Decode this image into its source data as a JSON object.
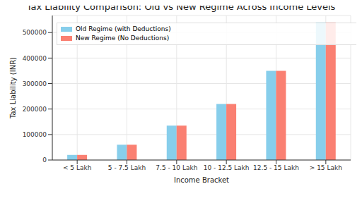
{
  "chart_data": {
    "type": "bar",
    "title": "Tax Liability Comparison: Old vs New Regime Across Income Levels",
    "x_label": "Income Bracket",
    "y_label": "Tax Liability (INR)",
    "categories": [
      "< 5 Lakh",
      "5 - 7.5 Lakh",
      "7.5 - 10 Lakh",
      "10 - 12.5 Lakh",
      "12.5 - 15 Lakh",
      "> 15 Lakh"
    ],
    "series": [
      {
        "name": "Old Regime (with Deductions)",
        "color": "#87ceeb",
        "values": [
          20000,
          60000,
          135000,
          220000,
          350000,
          540000
        ]
      },
      {
        "name": "New Regime (No Deductions)",
        "color": "#fa8072",
        "values": [
          20000,
          60000,
          135000,
          220000,
          350000,
          540000
        ]
      }
    ],
    "ylim": [
      0,
      567000
    ],
    "yticks": [
      0,
      100000,
      200000,
      300000,
      400000,
      500000
    ],
    "grid": true,
    "legend": "upper left"
  }
}
